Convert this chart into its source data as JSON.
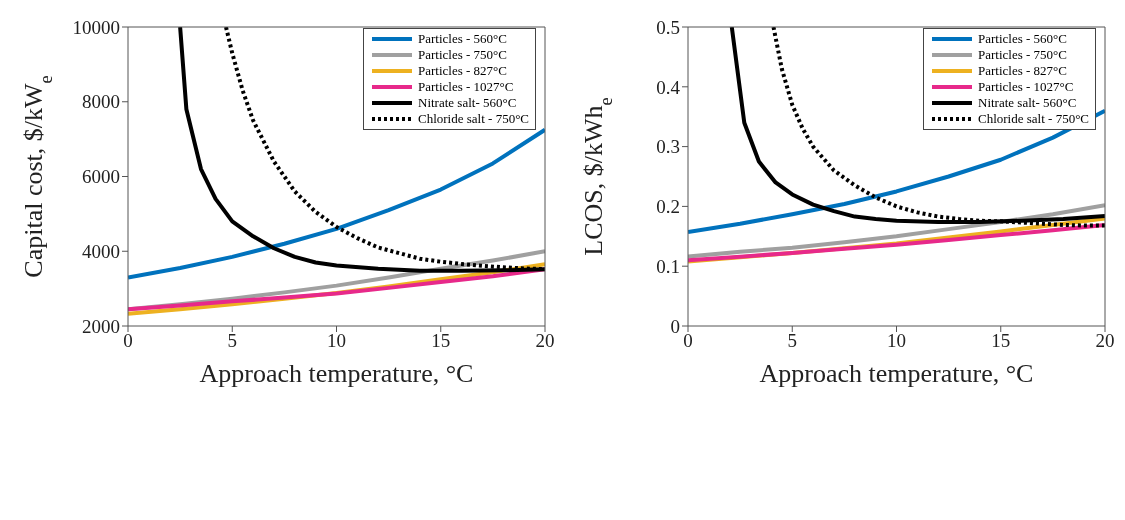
{
  "chart_data": [
    {
      "type": "line",
      "xlabel": "Approach temperature, °C",
      "ylabel": "Capital cost, $/kW$_{e}$",
      "xlim": [
        0,
        20
      ],
      "xticks": [
        0,
        5,
        10,
        15,
        20
      ],
      "ylim": [
        2000,
        10000
      ],
      "yticks": [
        2000,
        4000,
        6000,
        8000,
        10000
      ],
      "legend": "top right",
      "grid": false,
      "line_style": "solid",
      "marker": "none",
      "x": [
        0,
        2.5,
        5,
        7.5,
        10,
        12.5,
        15,
        17.5,
        20
      ],
      "series": [
        {
          "name": "Particles - 560°C",
          "color": "#0072bd",
          "values": [
            3300,
            3550,
            3850,
            4200,
            4600,
            5100,
            5650,
            6350,
            7250
          ]
        },
        {
          "name": "Particles - 750°C",
          "color": "#a0a0a0",
          "values": [
            2450,
            2580,
            2730,
            2900,
            3080,
            3300,
            3530,
            3750,
            4000
          ]
        },
        {
          "name": "Particles - 827°C",
          "color": "#edb120",
          "values": [
            2330,
            2450,
            2580,
            2730,
            2880,
            3060,
            3250,
            3440,
            3650
          ]
        },
        {
          "name": "Particles - 1027°C",
          "color": "#e7298a",
          "values": [
            2450,
            2550,
            2660,
            2760,
            2870,
            3020,
            3180,
            3330,
            3520
          ]
        },
        {
          "name": "Nitrate salt- 560°C",
          "color": "#000000",
          "x": [
            2.5,
            2.8,
            3.5,
            4.2,
            5,
            6,
            7,
            8,
            9,
            10,
            12,
            14,
            16,
            18,
            20
          ],
          "values": [
            10000,
            7800,
            6200,
            5400,
            4800,
            4400,
            4080,
            3850,
            3700,
            3620,
            3530,
            3480,
            3480,
            3490,
            3520
          ]
        },
        {
          "name": "Chloride salt - 750°C",
          "color": "#000000",
          "line_style": "dotted",
          "x": [
            4.7,
            5,
            5.5,
            6,
            7,
            8,
            9,
            10,
            11,
            12,
            13,
            14,
            15,
            16,
            17,
            18,
            19,
            20
          ],
          "values": [
            10000,
            9300,
            8300,
            7500,
            6400,
            5600,
            5050,
            4650,
            4350,
            4100,
            3950,
            3800,
            3720,
            3660,
            3610,
            3570,
            3540,
            3520
          ]
        }
      ]
    },
    {
      "type": "line",
      "xlabel": "Approach temperature, °C",
      "ylabel": "LCOS, $/kWh$_{e}$",
      "xlim": [
        0,
        20
      ],
      "xticks": [
        0,
        5,
        10,
        15,
        20
      ],
      "ylim": [
        0,
        0.5
      ],
      "yticks": [
        0,
        0.1,
        0.2,
        0.3,
        0.4,
        0.5
      ],
      "legend": "top right",
      "grid": false,
      "line_style": "solid",
      "marker": "none",
      "x": [
        0,
        2.5,
        5,
        7.5,
        10,
        12.5,
        15,
        17.5,
        20
      ],
      "series": [
        {
          "name": "Particles - 560°C",
          "color": "#0072bd",
          "values": [
            0.157,
            0.171,
            0.187,
            0.204,
            0.225,
            0.25,
            0.278,
            0.315,
            0.36
          ]
        },
        {
          "name": "Particles - 750°C",
          "color": "#a0a0a0",
          "values": [
            0.116,
            0.124,
            0.131,
            0.14,
            0.15,
            0.162,
            0.174,
            0.187,
            0.202
          ]
        },
        {
          "name": "Particles - 827°C",
          "color": "#edb120",
          "values": [
            0.108,
            0.115,
            0.122,
            0.13,
            0.138,
            0.148,
            0.158,
            0.169,
            0.18
          ]
        },
        {
          "name": "Particles - 1027°C",
          "color": "#e7298a",
          "values": [
            0.11,
            0.116,
            0.122,
            0.129,
            0.136,
            0.144,
            0.152,
            0.16,
            0.169
          ]
        },
        {
          "name": "Nitrate salt- 560°C",
          "color": "#000000",
          "x": [
            2.1,
            2.7,
            3.4,
            4.2,
            5,
            6,
            7,
            8,
            9,
            10,
            12,
            14,
            16,
            18,
            20
          ],
          "values": [
            0.5,
            0.34,
            0.275,
            0.24,
            0.22,
            0.203,
            0.192,
            0.183,
            0.179,
            0.176,
            0.174,
            0.174,
            0.176,
            0.179,
            0.184
          ]
        },
        {
          "name": "Chloride salt - 750°C",
          "color": "#000000",
          "line_style": "dotted",
          "x": [
            4.1,
            4.5,
            5,
            5.5,
            6,
            7,
            8,
            9,
            10,
            11,
            12,
            13,
            14,
            15,
            16,
            17,
            18,
            19,
            20
          ],
          "values": [
            0.5,
            0.43,
            0.37,
            0.33,
            0.3,
            0.26,
            0.235,
            0.215,
            0.2,
            0.19,
            0.183,
            0.179,
            0.176,
            0.175,
            0.173,
            0.171,
            0.169,
            0.168,
            0.168
          ]
        }
      ]
    }
  ]
}
